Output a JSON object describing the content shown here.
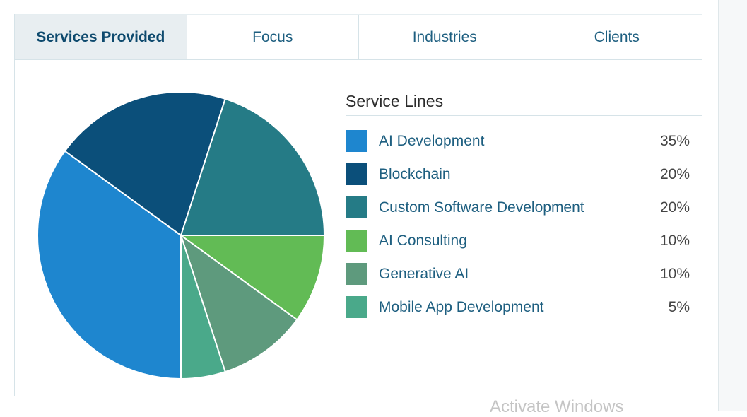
{
  "tabs": [
    {
      "label": "Services Provided",
      "active": true
    },
    {
      "label": "Focus",
      "active": false
    },
    {
      "label": "Industries",
      "active": false
    },
    {
      "label": "Clients",
      "active": false
    }
  ],
  "chart_data": {
    "type": "pie",
    "title": "Service Lines",
    "legend_position": "right",
    "slices": [
      {
        "label": "AI Development",
        "value": 35,
        "display": "35%",
        "color": "#1e86cf"
      },
      {
        "label": "Blockchain",
        "value": 20,
        "display": "20%",
        "color": "#0b4f7a"
      },
      {
        "label": "Custom Software Development",
        "value": 20,
        "display": "20%",
        "color": "#257b86"
      },
      {
        "label": "AI Consulting",
        "value": 10,
        "display": "10%",
        "color": "#62bb55"
      },
      {
        "label": "Generative AI",
        "value": 10,
        "display": "10%",
        "color": "#5e9a7d"
      },
      {
        "label": "Mobile App Development",
        "value": 5,
        "display": "5%",
        "color": "#4aa98a"
      }
    ]
  },
  "watermark": "Activate Windows"
}
